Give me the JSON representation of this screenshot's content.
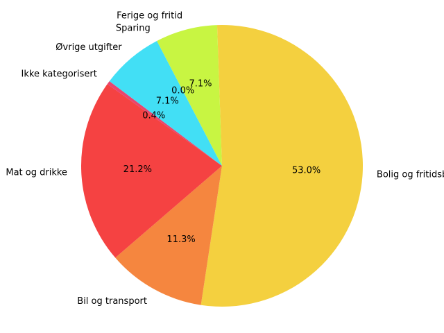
{
  "chart_data": {
    "type": "pie",
    "title": "",
    "start_angle_deg": -92,
    "direction": "clockwise",
    "slices": [
      {
        "label": "Bolig og fritidsbolig",
        "value": 53.0,
        "pct_text": "53.0%",
        "color": "#f4d03f"
      },
      {
        "label": "Bil og transport",
        "value": 11.3,
        "pct_text": "11.3%",
        "color": "#f5863f"
      },
      {
        "label": "Mat og drikke",
        "value": 21.2,
        "pct_text": "21.2%",
        "color": "#f54242"
      },
      {
        "label": "Ikke kategorisert",
        "value": 0.4,
        "pct_text": "0.4%",
        "color": "#e8456f"
      },
      {
        "label": "Øvrige utgifter",
        "value": 7.1,
        "pct_text": "7.1%",
        "color": "#42dff5"
      },
      {
        "label": "Sparing",
        "value": 0.0,
        "pct_text": "0.0%",
        "color": "#42f5c2"
      },
      {
        "label": "Ferige og fritid",
        "value": 7.1,
        "pct_text": "7.1%",
        "color": "#c8f542"
      }
    ]
  }
}
